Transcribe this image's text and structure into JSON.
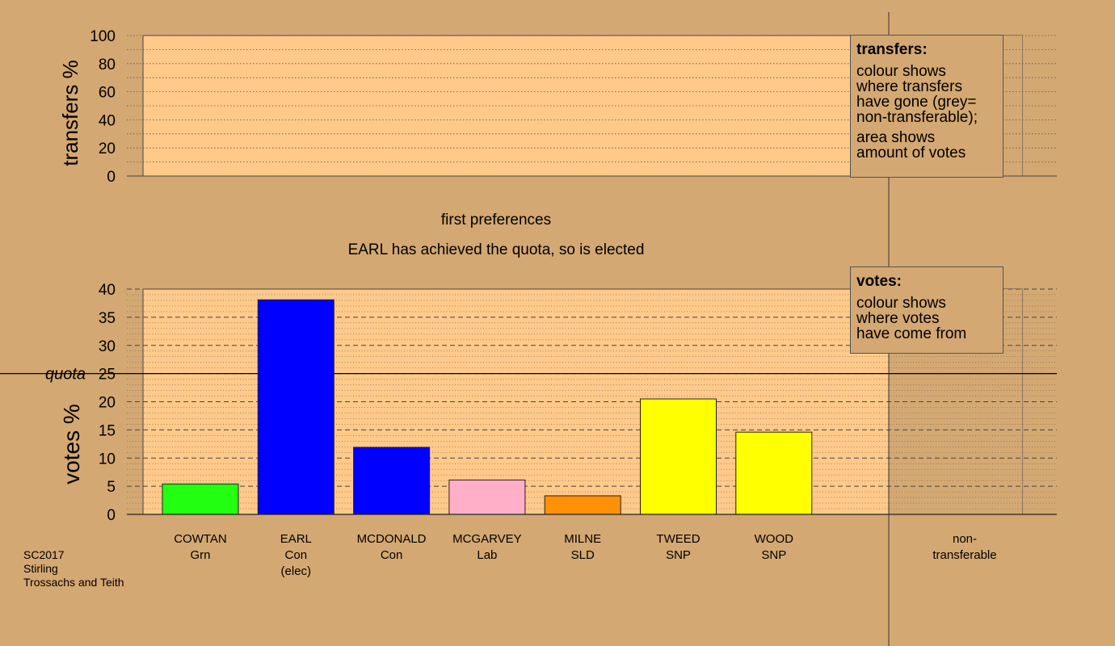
{
  "chart_data": [
    {
      "type": "bar",
      "panel": "transfers",
      "ylabel": "transfers %",
      "ylim": [
        0,
        100
      ],
      "yticks": [
        "0",
        "20",
        "40",
        "60",
        "80",
        "100"
      ],
      "values": [],
      "legend": {
        "title": "transfers:",
        "lines": [
          "colour shows\nwhere transfers\nhave gone (grey=\nnon-transferable);",
          "area shows\namount of votes"
        ]
      }
    },
    {
      "type": "bar",
      "panel": "votes",
      "title": "first preferences",
      "subtitle": "EARL has achieved the quota, so is elected",
      "ylabel": "votes %",
      "ylim": [
        0,
        40
      ],
      "yticks": [
        "0",
        "5",
        "10",
        "15",
        "20",
        "25",
        "30",
        "35",
        "40"
      ],
      "quota": 25,
      "quota_label": "quota",
      "categories": [
        {
          "name": "COWTAN",
          "party": "Grn",
          "note": ""
        },
        {
          "name": "EARL",
          "party": "Con",
          "note": "(elec)"
        },
        {
          "name": "MCDONALD",
          "party": "Con",
          "note": ""
        },
        {
          "name": "MCGARVEY",
          "party": "Lab",
          "note": ""
        },
        {
          "name": "MILNE",
          "party": "SLD",
          "note": ""
        },
        {
          "name": "TWEED",
          "party": "SNP",
          "note": ""
        },
        {
          "name": "WOOD",
          "party": "SNP",
          "note": ""
        }
      ],
      "values": [
        5.4,
        38.1,
        11.9,
        6.1,
        3.3,
        20.5,
        14.6
      ],
      "colors": [
        "#22ff11",
        "#0000ff",
        "#0000ff",
        "#ffb0c8",
        "#ff9108",
        "#ffff00",
        "#ffff00"
      ],
      "nontransferable_label": "non-\ntransferable",
      "legend": {
        "title": "votes:",
        "lines": [
          "colour shows\nwhere votes\nhave come from"
        ]
      }
    }
  ],
  "footer": {
    "line1": "SC2017",
    "line2": "Stirling",
    "line3": "Trossachs and Teith"
  },
  "colors": {
    "background": "#d4a872",
    "plot_area": "#ffc98a",
    "nontransferable_area": "#d4a872"
  }
}
